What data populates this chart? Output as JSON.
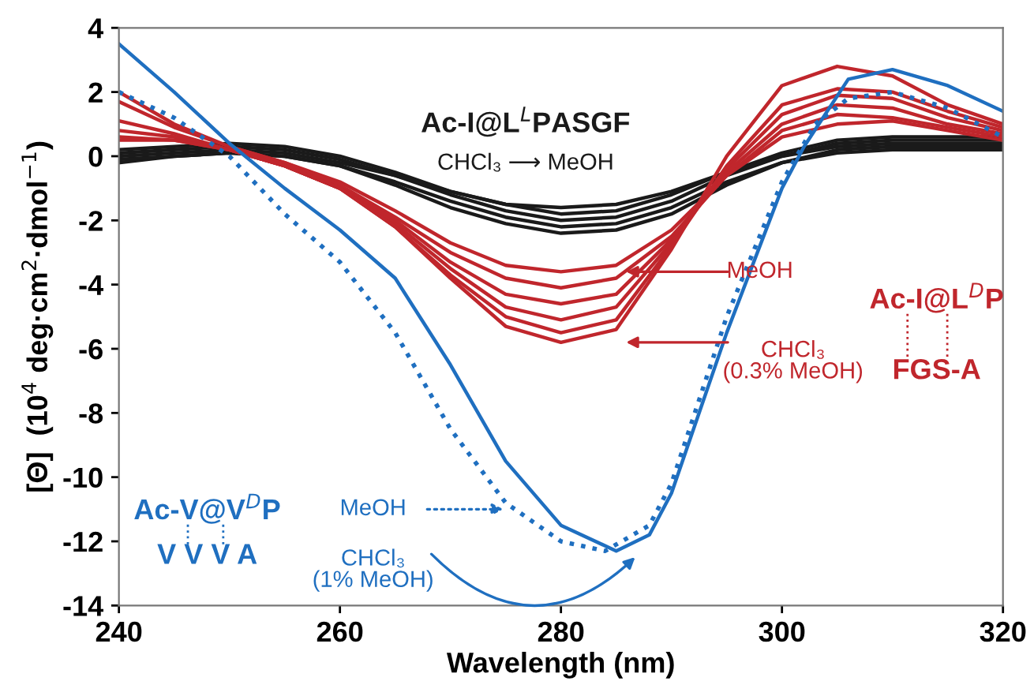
{
  "chart_data": {
    "type": "line",
    "xlabel": "Wavelength (nm)",
    "ylabel": "[Θ]  (10$^{4}$ deg·cm$^{2}$·dmol$^{−1}$)",
    "x": [
      240,
      245,
      250,
      255,
      260,
      265,
      270,
      275,
      280,
      285,
      290,
      295,
      300,
      305,
      310,
      315,
      320
    ],
    "xlim": [
      240,
      320
    ],
    "xticks": [
      240,
      260,
      280,
      300,
      320
    ],
    "ylim": [
      -14,
      4
    ],
    "yticks": [
      -14,
      -12,
      -10,
      -8,
      -6,
      -4,
      -2,
      0,
      2,
      4
    ],
    "grid": false,
    "legend": false,
    "marker": "none",
    "series": [
      {
        "color": "#1a1a1a",
        "values": [
          -0.2,
          0.0,
          0.1,
          0.0,
          -0.3,
          -0.9,
          -1.6,
          -2.1,
          -2.4,
          -2.3,
          -1.8,
          -0.9,
          -0.2,
          0.2,
          0.3,
          0.3,
          0.3
        ]
      },
      {
        "color": "#1a1a1a",
        "values": [
          -0.1,
          0.0,
          0.1,
          0.0,
          -0.3,
          -0.8,
          -1.4,
          -1.9,
          -2.2,
          -2.1,
          -1.6,
          -0.8,
          -0.2,
          0.1,
          0.2,
          0.2,
          0.2
        ]
      },
      {
        "color": "#1a1a1a",
        "values": [
          0.1,
          0.2,
          0.3,
          0.2,
          -0.1,
          -0.6,
          -1.2,
          -1.7,
          -2.0,
          -1.9,
          -1.4,
          -0.6,
          0.0,
          0.4,
          0.5,
          0.5,
          0.5
        ]
      },
      {
        "color": "#1a1a1a",
        "values": [
          0.2,
          0.3,
          0.4,
          0.3,
          0.0,
          -0.5,
          -1.1,
          -1.5,
          -1.8,
          -1.7,
          -1.2,
          -0.5,
          0.1,
          0.5,
          0.6,
          0.6,
          0.6
        ]
      },
      {
        "color": "#1a1a1a",
        "values": [
          0.0,
          0.1,
          0.2,
          0.1,
          -0.2,
          -0.6,
          -1.1,
          -1.5,
          -1.6,
          -1.5,
          -1.1,
          -0.5,
          0.0,
          0.3,
          0.4,
          0.4,
          0.4
        ]
      },
      {
        "color": "#c0262c",
        "values": [
          2.0,
          1.0,
          0.3,
          -0.2,
          -0.8,
          -1.7,
          -2.7,
          -3.4,
          -3.6,
          -3.4,
          -2.3,
          -0.6,
          0.6,
          1.0,
          1.1,
          0.8,
          0.5
        ]
      },
      {
        "color": "#c0262c",
        "values": [
          1.7,
          0.9,
          0.3,
          -0.2,
          -0.9,
          -1.9,
          -3.0,
          -3.8,
          -4.1,
          -3.8,
          -2.5,
          -0.6,
          0.8,
          1.3,
          1.2,
          0.9,
          0.6
        ]
      },
      {
        "color": "#c0262c",
        "values": [
          1.1,
          0.7,
          0.2,
          -0.3,
          -1.0,
          -2.0,
          -3.3,
          -4.3,
          -4.6,
          -4.3,
          -2.6,
          -0.5,
          1.0,
          1.6,
          1.5,
          1.0,
          0.7
        ]
      },
      {
        "color": "#c0262c",
        "values": [
          0.8,
          0.6,
          0.2,
          -0.3,
          -1.0,
          -2.1,
          -3.5,
          -4.7,
          -5.1,
          -4.7,
          -2.7,
          -0.4,
          1.3,
          1.9,
          1.8,
          1.2,
          0.8
        ]
      },
      {
        "color": "#c0262c",
        "values": [
          0.6,
          0.5,
          0.2,
          -0.3,
          -1.0,
          -2.2,
          -3.7,
          -5.0,
          -5.5,
          -5.1,
          -2.8,
          -0.3,
          1.6,
          2.1,
          2.0,
          1.4,
          0.9
        ]
      },
      {
        "color": "#c0262c",
        "values": [
          0.5,
          0.5,
          0.2,
          -0.3,
          -1.0,
          -2.2,
          -3.8,
          -5.3,
          -5.8,
          -5.4,
          -2.9,
          0.0,
          2.2,
          2.8,
          2.5,
          1.6,
          1.0
        ]
      },
      {
        "color": "#1f6fc0",
        "x": [
          240,
          245,
          250,
          255,
          260,
          265,
          270,
          275,
          280,
          285,
          288,
          290,
          295,
          300,
          302,
          306,
          310,
          315,
          320
        ],
        "values": [
          3.5,
          2.0,
          0.4,
          -1.0,
          -2.3,
          -3.8,
          -6.5,
          -9.5,
          -11.5,
          -12.3,
          -11.8,
          -10.5,
          -5.5,
          -1.0,
          0.3,
          2.4,
          2.7,
          2.2,
          1.4
        ]
      },
      {
        "color": "#1f6fc0",
        "line_style": "dotted",
        "x": [
          240,
          245,
          250,
          255,
          260,
          265,
          270,
          275,
          280,
          284,
          288,
          290,
          295,
          300,
          303,
          306,
          310,
          315,
          320
        ],
        "values": [
          2.0,
          1.2,
          0.0,
          -1.8,
          -3.3,
          -5.5,
          -8.5,
          -10.8,
          -12.0,
          -12.3,
          -11.5,
          -10.2,
          -5.0,
          -0.8,
          1.0,
          1.8,
          2.0,
          1.5,
          0.6
        ]
      }
    ],
    "annotations": [
      "Ac-I@L$^{L}$PASGF",
      "CHCl₃ ⟶ MeOH",
      "MeOH",
      "CHCl₃\n(0.3% MeOH)",
      "Ac-I@L$^{D}$P",
      "FGS-A",
      "MeOH",
      "CHCl₃\n(1% MeOH)",
      "Ac-V@V$^{D}$P",
      "V V V A"
    ]
  }
}
